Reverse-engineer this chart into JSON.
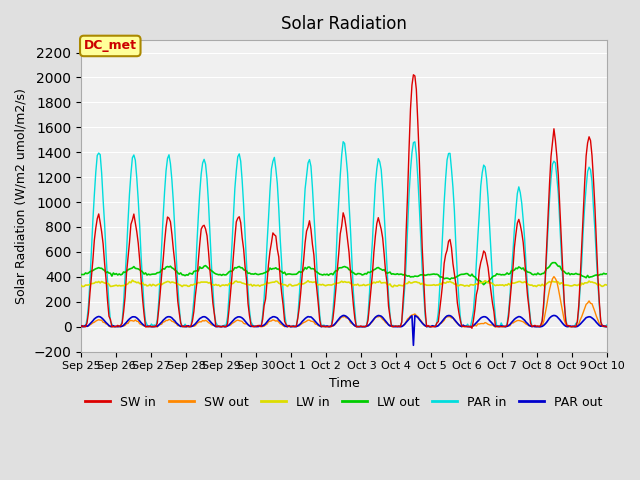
{
  "title": "Solar Radiation",
  "ylabel": "Solar Radiation (W/m2 umol/m2/s)",
  "xlabel": "Time",
  "ylim": [
    -200,
    2300
  ],
  "yticks": [
    -200,
    0,
    200,
    400,
    600,
    800,
    1000,
    1200,
    1400,
    1600,
    1800,
    2000,
    2200
  ],
  "bg_color": "#e8e8e8",
  "plot_bg": "#f0f0f0",
  "annotation_text": "DC_met",
  "annotation_color": "#cc0000",
  "annotation_bg": "#ffff99",
  "annotation_border": "#aa8800",
  "x_tick_labels": [
    "Sep 25",
    "Sep 26",
    "Sep 27",
    "Sep 28",
    "Sep 29",
    "Sep 30",
    "Oct 1",
    "Oct 2",
    "Oct 3",
    "Oct 4",
    "Oct 5",
    "Oct 6",
    "Oct 7",
    "Oct 8",
    "Oct 9",
    "Oct 10"
  ],
  "colors": {
    "SW_in": "#dd0000",
    "SW_out": "#ff8800",
    "LW_in": "#dddd00",
    "LW_out": "#00cc00",
    "PAR_in": "#00dddd",
    "PAR_out": "#0000cc"
  },
  "legend_labels": [
    "SW in",
    "SW out",
    "LW in",
    "LW out",
    "PAR in",
    "PAR out"
  ]
}
